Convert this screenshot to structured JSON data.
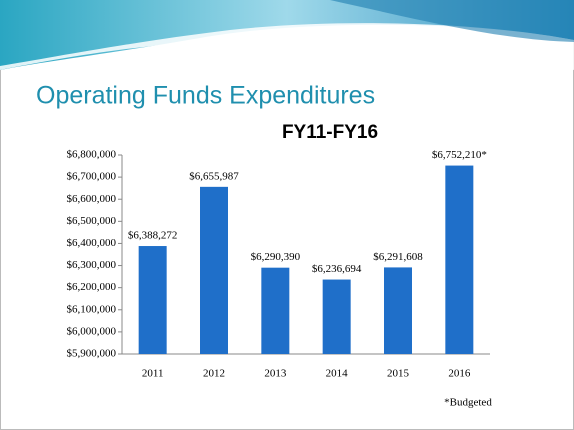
{
  "slide": {
    "title": "Operating Funds Expenditures"
  },
  "chart_data": {
    "type": "bar",
    "title": "FY11-FY16",
    "categories": [
      "2011",
      "2012",
      "2013",
      "2014",
      "2015",
      "2016"
    ],
    "values": [
      6388272,
      6655987,
      6290390,
      6236694,
      6291608,
      6752210
    ],
    "value_labels": [
      "$6,388,272",
      "$6,655,987",
      "$6,290,390",
      "$6,236,694",
      "$6,291,608",
      "$6,752,210*"
    ],
    "color": "#1f6fc9",
    "ylim": [
      5900000,
      6800000
    ],
    "yticks": [
      {
        "value": 5900000,
        "label": "$5,900,000"
      },
      {
        "value": 6000000,
        "label": "$6,000,000"
      },
      {
        "value": 6100000,
        "label": "$6,100,000"
      },
      {
        "value": 6200000,
        "label": "$6,200,000"
      },
      {
        "value": 6300000,
        "label": "$6,300,000"
      },
      {
        "value": 6400000,
        "label": "$6,400,000"
      },
      {
        "value": 6500000,
        "label": "$6,500,000"
      },
      {
        "value": 6600000,
        "label": "$6,600,000"
      },
      {
        "value": 6700000,
        "label": "$6,700,000"
      },
      {
        "value": 6800000,
        "label": "$6,800,000"
      }
    ],
    "annotation": "*Budgeted"
  }
}
